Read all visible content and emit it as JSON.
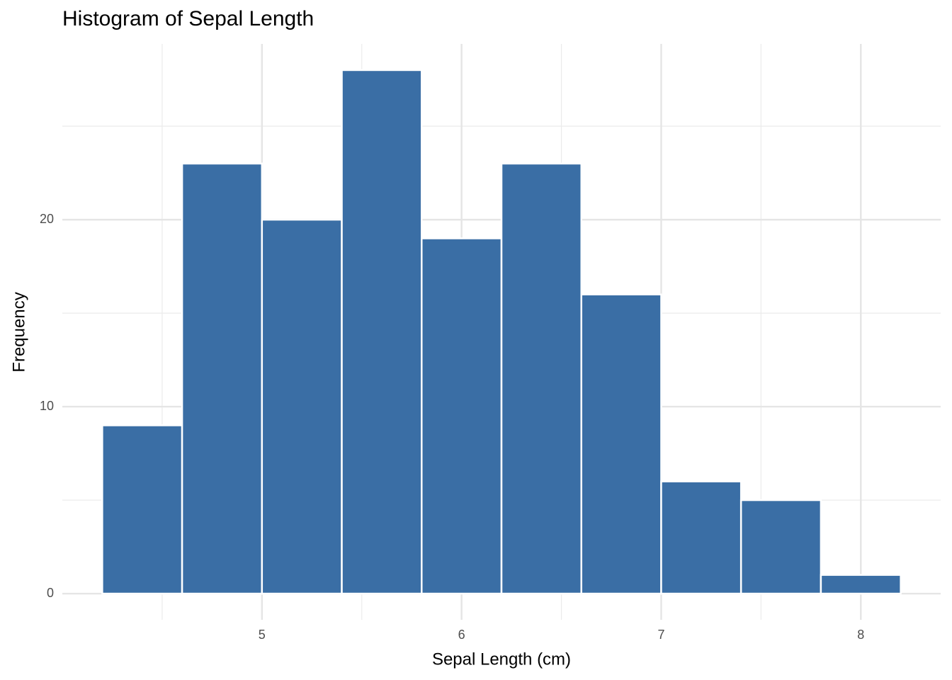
{
  "chart_data": {
    "type": "histogram",
    "title": "Histogram of Sepal Length",
    "x_label": "Sepal Length (cm)",
    "y_label": "Frequency",
    "bins": [
      4.2,
      4.6,
      5.0,
      5.4,
      5.8,
      6.2,
      6.6,
      7.0,
      7.4,
      7.8,
      8.2
    ],
    "values": [
      9,
      23,
      20,
      28,
      19,
      23,
      16,
      6,
      5,
      1
    ],
    "color": "#3a6ea5",
    "edge_color": "#ffffff",
    "xlim": [
      4.0,
      8.4
    ],
    "ylim": [
      -1.4,
      29.4
    ],
    "xticks": [
      5,
      6,
      7,
      8
    ],
    "yticks": [
      0,
      10,
      20
    ],
    "x_minor_ticks": [
      4.5,
      5.5,
      6.5,
      7.5
    ],
    "y_minor_ticks": [
      5,
      15,
      25
    ],
    "grid": true
  }
}
